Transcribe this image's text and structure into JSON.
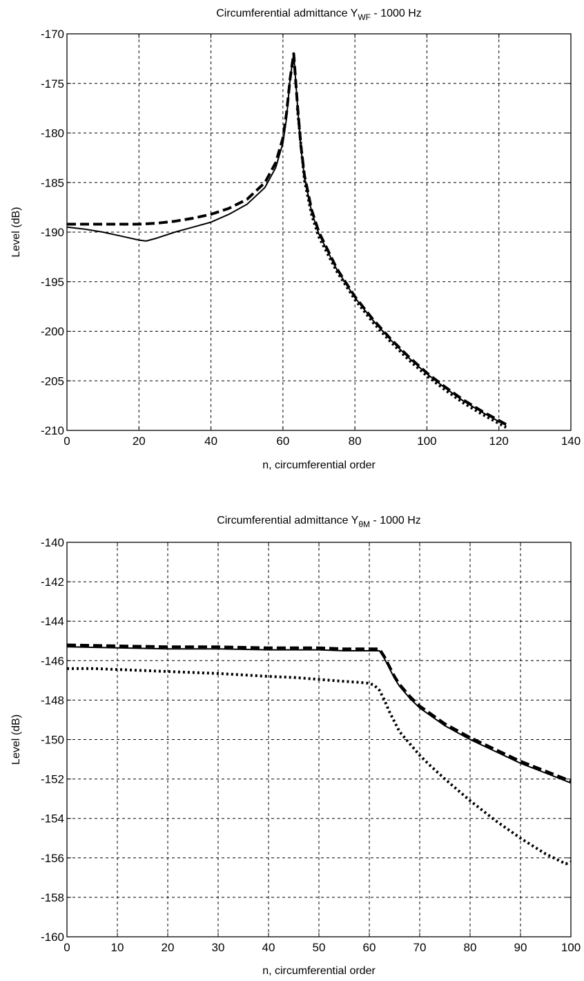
{
  "chart_data": [
    {
      "type": "line",
      "title_main": "Circumferential admittance Y",
      "title_sub": "WF",
      "title_tail": " - 1000 Hz",
      "xlabel": "n, circumferential order",
      "ylabel": "Level (dB)",
      "xlim": [
        0,
        140
      ],
      "ylim": [
        -210,
        -170
      ],
      "xticks": [
        0,
        20,
        40,
        60,
        80,
        100,
        120,
        140
      ],
      "yticks": [
        -210,
        -205,
        -200,
        -195,
        -190,
        -185,
        -180,
        -175,
        -170
      ],
      "grid": true,
      "series": [
        {
          "style": "solid",
          "x": [
            0,
            5,
            10,
            15,
            20,
            22,
            25,
            30,
            35,
            40,
            45,
            50,
            55,
            58,
            60,
            61,
            62,
            63,
            64,
            65,
            66,
            68,
            70,
            75,
            80,
            85,
            90,
            95,
            100,
            105,
            110,
            115,
            120,
            122
          ],
          "y": [
            -189.5,
            -189.7,
            -190.0,
            -190.4,
            -190.8,
            -190.9,
            -190.6,
            -190.0,
            -189.5,
            -189.0,
            -188.2,
            -187.2,
            -185.5,
            -183.5,
            -181.0,
            -178.5,
            -174.5,
            -172.0,
            -177.0,
            -181.5,
            -184.5,
            -188.0,
            -190.2,
            -193.8,
            -196.6,
            -198.9,
            -200.9,
            -202.7,
            -204.3,
            -205.7,
            -207.0,
            -208.1,
            -209.1,
            -209.5
          ]
        },
        {
          "style": "dashed",
          "x": [
            0,
            5,
            10,
            15,
            20,
            25,
            30,
            35,
            40,
            45,
            50,
            55,
            58,
            60,
            61,
            62,
            63,
            64,
            65,
            66,
            68,
            70,
            75,
            80,
            85,
            90,
            95,
            100,
            105,
            110,
            115,
            120,
            122
          ],
          "y": [
            -189.2,
            -189.2,
            -189.2,
            -189.2,
            -189.2,
            -189.1,
            -188.9,
            -188.6,
            -188.2,
            -187.6,
            -186.7,
            -185.0,
            -183.0,
            -180.5,
            -178.0,
            -174.5,
            -172.0,
            -177.0,
            -181.3,
            -184.3,
            -187.8,
            -190.0,
            -193.7,
            -196.5,
            -198.8,
            -200.8,
            -202.6,
            -204.2,
            -205.6,
            -206.9,
            -208.0,
            -209.0,
            -209.4
          ]
        },
        {
          "style": "dotted",
          "x": [
            64,
            66,
            68,
            70,
            75,
            80,
            85,
            90,
            95,
            100,
            105,
            110,
            115,
            120,
            122
          ],
          "y": [
            -177.5,
            -184.8,
            -188.3,
            -190.5,
            -194.0,
            -196.8,
            -199.1,
            -201.1,
            -202.9,
            -204.5,
            -205.9,
            -207.2,
            -208.3,
            -209.3,
            -209.7
          ]
        }
      ]
    },
    {
      "type": "line",
      "title_main": "Circumferential admittance Y",
      "title_sub": "θM",
      "title_tail": " - 1000 Hz",
      "xlabel": "n, circumferential order",
      "ylabel": "Level (dB)",
      "xlim": [
        0,
        100
      ],
      "ylim": [
        -160,
        -140
      ],
      "xticks": [
        0,
        10,
        20,
        30,
        40,
        50,
        60,
        70,
        80,
        90,
        100
      ],
      "yticks": [
        -160,
        -158,
        -156,
        -154,
        -152,
        -150,
        -148,
        -146,
        -144,
        -142,
        -140
      ],
      "grid": true,
      "series": [
        {
          "style": "solid",
          "x": [
            0,
            10,
            20,
            30,
            40,
            50,
            55,
            60,
            62,
            63,
            64,
            65,
            66,
            68,
            70,
            75,
            80,
            85,
            90,
            95,
            100
          ],
          "y": [
            -145.3,
            -145.35,
            -145.4,
            -145.4,
            -145.45,
            -145.45,
            -145.5,
            -145.5,
            -145.5,
            -145.9,
            -146.4,
            -146.9,
            -147.3,
            -147.9,
            -148.4,
            -149.3,
            -150.0,
            -150.6,
            -151.2,
            -151.7,
            -152.2
          ]
        },
        {
          "style": "dashed",
          "x": [
            0,
            10,
            20,
            30,
            40,
            50,
            55,
            60,
            62,
            63,
            64,
            65,
            66,
            68,
            70,
            75,
            80,
            85,
            90,
            95,
            100
          ],
          "y": [
            -145.2,
            -145.25,
            -145.3,
            -145.3,
            -145.35,
            -145.35,
            -145.4,
            -145.4,
            -145.4,
            -145.8,
            -146.3,
            -146.8,
            -147.2,
            -147.8,
            -148.3,
            -149.2,
            -149.9,
            -150.5,
            -151.1,
            -151.6,
            -152.1
          ]
        },
        {
          "style": "dotted",
          "x": [
            0,
            5,
            10,
            20,
            30,
            40,
            45,
            50,
            55,
            58,
            60,
            61,
            62,
            63,
            64,
            65,
            66,
            68,
            70,
            72,
            75,
            80,
            85,
            90,
            95,
            99,
            100
          ],
          "y": [
            -146.4,
            -146.4,
            -146.45,
            -146.55,
            -146.65,
            -146.8,
            -146.85,
            -146.95,
            -147.05,
            -147.1,
            -147.15,
            -147.25,
            -147.5,
            -148.0,
            -148.6,
            -149.1,
            -149.6,
            -150.2,
            -150.8,
            -151.3,
            -152.0,
            -153.1,
            -154.1,
            -155.0,
            -155.8,
            -156.3,
            -156.2
          ]
        }
      ]
    }
  ]
}
